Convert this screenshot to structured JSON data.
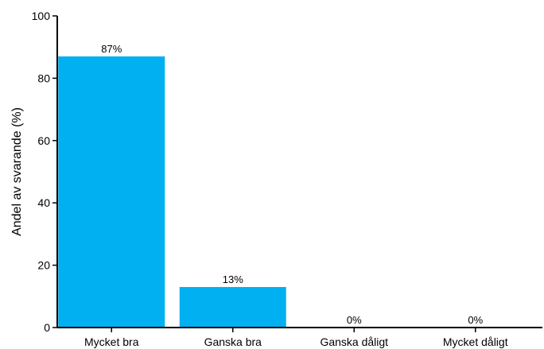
{
  "chart_data": {
    "type": "bar",
    "categories": [
      "Mycket bra",
      "Ganska bra",
      "Ganska dåligt",
      "Mycket dåligt"
    ],
    "values": [
      87,
      13,
      0,
      0
    ],
    "value_labels": [
      "87%",
      "13%",
      "0%",
      "0%"
    ],
    "ylabel": "Andel av svarande (%)",
    "ylim": [
      0,
      100
    ],
    "yticks": [
      0,
      20,
      40,
      60,
      80,
      100
    ],
    "bar_color": "#00b0f0",
    "grid": false
  }
}
